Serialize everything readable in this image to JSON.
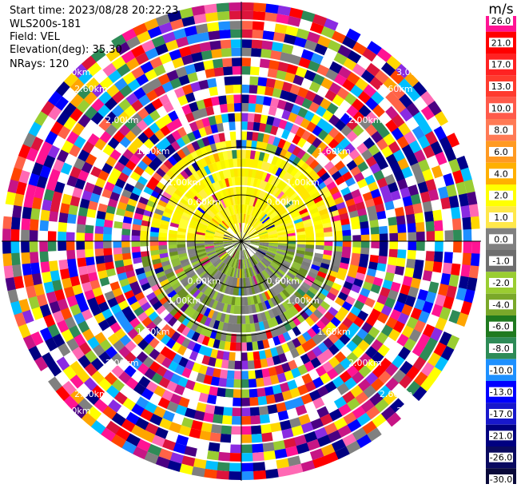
{
  "info": {
    "start_time": "Start time: 2023/08/28 20:22:23",
    "site": "WLS200s-181",
    "field": "Field: VEL",
    "elevation": "Elevation(deg): 35.30",
    "nrays": "NRays: 120"
  },
  "colorbar": {
    "unit": "m/s",
    "ticks": [
      "26.0",
      "21.0",
      "17.0",
      "13.0",
      "10.0",
      "8.0",
      "6.0",
      "4.0",
      "2.0",
      "1.0",
      "0.0",
      "-1.0",
      "-2.0",
      "-4.0",
      "-6.0",
      "-8.0",
      "-10.0",
      "-13.0",
      "-17.0",
      "-21.0",
      "-26.0",
      "-30.0"
    ],
    "colors": [
      "#ff1493",
      "#ff0000",
      "#ff2222",
      "#ff3b2e",
      "#ff5a4a",
      "#ff7a55",
      "#ff9a22",
      "#ffb000",
      "#ffff00",
      "#ffe84a",
      "#808080",
      "#6e6e6e",
      "#9acd32",
      "#7aa82a",
      "#1f7a1f",
      "#2e8b57",
      "#1e90ff",
      "#0000ff",
      "#1818cc",
      "#000080",
      "#0a0a60",
      "#0a0a3a"
    ]
  },
  "chart_data": {
    "type": "ppi",
    "field": "VEL",
    "units": "m/s",
    "nrays": 120,
    "elevation_deg": 35.3,
    "ring_labels": [
      {
        "label": "0.60km"
      },
      {
        "label": "1.00km"
      },
      {
        "label": "1.60km"
      },
      {
        "label": "2.00km"
      },
      {
        "label": "2.60km"
      },
      {
        "label": "3.00km"
      }
    ],
    "spokes_deg": [
      0,
      30,
      60,
      90,
      120,
      150,
      180,
      210,
      240,
      270,
      300,
      330
    ],
    "near_field_pattern": "positive (yellow) velocities toward top, negative (green/gray) toward bottom, noisy multicolor beyond ~1 km"
  }
}
